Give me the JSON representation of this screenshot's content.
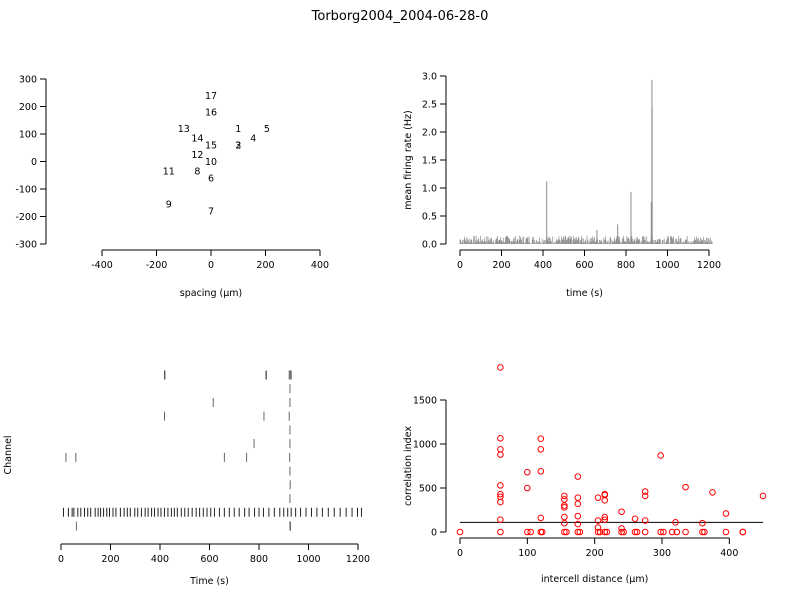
{
  "title": "Torborg2004_2004-06-28-0",
  "chart_data": [
    {
      "type": "scatter",
      "id": "electrode-layout",
      "title": "",
      "xlabel": "spacing (µm)",
      "ylabel": "",
      "xlim": [
        -400,
        400
      ],
      "ylim": [
        -300,
        300
      ],
      "xticks": [
        -400,
        -200,
        0,
        200,
        400
      ],
      "yticks": [
        -300,
        -200,
        -100,
        0,
        100,
        200,
        300
      ],
      "points": [
        {
          "label": "17",
          "x": 0,
          "y": 240
        },
        {
          "label": "16",
          "x": 0,
          "y": 180
        },
        {
          "label": "13",
          "x": -100,
          "y": 120
        },
        {
          "label": "1",
          "x": 100,
          "y": 120
        },
        {
          "label": "5",
          "x": 205,
          "y": 120
        },
        {
          "label": "14",
          "x": -50,
          "y": 85
        },
        {
          "label": "4",
          "x": 155,
          "y": 85
        },
        {
          "label": "2",
          "x": 100,
          "y": 60
        },
        {
          "label": "3",
          "x": 100,
          "y": 60
        },
        {
          "label": "15",
          "x": 0,
          "y": 60
        },
        {
          "label": "12",
          "x": -50,
          "y": 25
        },
        {
          "label": "10",
          "x": 0,
          "y": 0
        },
        {
          "label": "11",
          "x": -155,
          "y": -35
        },
        {
          "label": "8",
          "x": -50,
          "y": -35
        },
        {
          "label": "6",
          "x": 0,
          "y": -60
        },
        {
          "label": "9",
          "x": -155,
          "y": -155
        },
        {
          "label": "7",
          "x": 0,
          "y": -180
        }
      ]
    },
    {
      "type": "bar",
      "id": "mean-firing-rate",
      "title": "",
      "xlabel": "time (s)",
      "ylabel": "mean firing rate (Hz)",
      "xlim": [
        0,
        1220
      ],
      "ylim": [
        0,
        3.0
      ],
      "xticks": [
        0,
        200,
        400,
        600,
        800,
        1000,
        1200
      ],
      "yticks": [
        "0.0",
        "0.5",
        "1.0",
        "1.5",
        "2.0",
        "2.5",
        "3.0"
      ],
      "baseline_range": [
        0.0,
        0.15
      ],
      "peaks": [
        {
          "x": 418,
          "y": 1.12
        },
        {
          "x": 824,
          "y": 0.93
        },
        {
          "x": 925,
          "y": 2.93
        },
        {
          "x": 926,
          "y": 2.45
        },
        {
          "x": 922,
          "y": 0.75
        },
        {
          "x": 760,
          "y": 0.35
        },
        {
          "x": 660,
          "y": 0.25
        }
      ],
      "color": "#8c8c8c"
    },
    {
      "type": "raster",
      "id": "spike-raster",
      "title": "",
      "xlabel": "Time (s)",
      "ylabel": "Channel",
      "xlim": [
        0,
        1220
      ],
      "xticks": [
        0,
        200,
        400,
        600,
        800,
        1000,
        1200
      ],
      "rows": [
        {
          "channel": 1,
          "spikes": [
            62,
            925,
            927
          ]
        },
        {
          "channel": 2,
          "spikes": [
            10,
            30,
            45,
            52,
            68,
            80,
            95,
            108,
            120,
            138,
            150,
            160,
            172,
            185,
            196,
            210,
            222,
            240,
            255,
            268,
            280,
            298,
            310,
            325,
            340,
            352,
            366,
            378,
            392,
            404,
            418,
            432,
            446,
            458,
            470,
            486,
            500,
            514,
            530,
            546,
            560,
            575,
            590,
            605,
            620,
            640,
            660,
            680,
            700,
            720,
            742,
            760,
            782,
            800,
            818,
            840,
            862,
            884,
            900,
            916,
            930,
            948,
            968,
            990,
            1012,
            1034,
            1056,
            1080,
            1104,
            1128,
            1152,
            1176,
            1198,
            1214
          ]
        },
        {
          "channel": 3,
          "spikes": [
            925
          ]
        },
        {
          "channel": 4,
          "spikes": [
            926
          ]
        },
        {
          "channel": 5,
          "spikes": [
            925
          ]
        },
        {
          "channel": 6,
          "spikes": [
            20,
            60,
            660,
            750,
            924
          ]
        },
        {
          "channel": 7,
          "spikes": [
            780,
            925
          ]
        },
        {
          "channel": 8,
          "spikes": [
            925
          ]
        },
        {
          "channel": 9,
          "spikes": [
            418,
            820,
            922
          ]
        },
        {
          "channel": 10,
          "spikes": [
            615,
            925
          ]
        },
        {
          "channel": 11,
          "spikes": [
            925
          ]
        },
        {
          "channel": 12,
          "spikes": [
            418,
            420,
            828,
            830,
            922,
            926,
            930
          ]
        }
      ]
    },
    {
      "type": "scatter",
      "id": "correlation-index",
      "title": "",
      "xlabel": "intercell distance (µm)",
      "ylabel": "correlation index",
      "xlim": [
        0,
        450
      ],
      "ylim": [
        0,
        1900
      ],
      "xticks": [
        0,
        100,
        200,
        300,
        400
      ],
      "yticks": [
        0,
        500,
        1000,
        1500
      ],
      "reference_line": 110,
      "color": "#ff0000",
      "points": [
        [
          0,
          0
        ],
        [
          60,
          1870
        ],
        [
          60,
          1065
        ],
        [
          60,
          940
        ],
        [
          60,
          880
        ],
        [
          60,
          530
        ],
        [
          60,
          430
        ],
        [
          60,
          400
        ],
        [
          60,
          340
        ],
        [
          60,
          140
        ],
        [
          60,
          0
        ],
        [
          100,
          680
        ],
        [
          100,
          500
        ],
        [
          100,
          0
        ],
        [
          105,
          0
        ],
        [
          120,
          1060
        ],
        [
          120,
          940
        ],
        [
          120,
          690
        ],
        [
          120,
          160
        ],
        [
          120,
          0
        ],
        [
          122,
          0
        ],
        [
          155,
          410
        ],
        [
          155,
          370
        ],
        [
          155,
          300
        ],
        [
          155,
          280
        ],
        [
          155,
          170
        ],
        [
          155,
          100
        ],
        [
          155,
          0
        ],
        [
          158,
          0
        ],
        [
          175,
          630
        ],
        [
          175,
          390
        ],
        [
          175,
          320
        ],
        [
          175,
          180
        ],
        [
          175,
          90
        ],
        [
          175,
          0
        ],
        [
          178,
          0
        ],
        [
          205,
          390
        ],
        [
          205,
          130
        ],
        [
          205,
          50
        ],
        [
          205,
          0
        ],
        [
          208,
          0
        ],
        [
          215,
          430
        ],
        [
          215,
          420
        ],
        [
          215,
          360
        ],
        [
          215,
          170
        ],
        [
          215,
          140
        ],
        [
          215,
          0
        ],
        [
          218,
          0
        ],
        [
          240,
          230
        ],
        [
          240,
          40
        ],
        [
          240,
          0
        ],
        [
          243,
          0
        ],
        [
          260,
          150
        ],
        [
          260,
          0
        ],
        [
          263,
          0
        ],
        [
          275,
          460
        ],
        [
          275,
          410
        ],
        [
          275,
          130
        ],
        [
          275,
          0
        ],
        [
          298,
          870
        ],
        [
          298,
          0
        ],
        [
          302,
          0
        ],
        [
          315,
          0
        ],
        [
          320,
          110
        ],
        [
          322,
          0
        ],
        [
          335,
          510
        ],
        [
          335,
          0
        ],
        [
          360,
          100
        ],
        [
          360,
          0
        ],
        [
          363,
          0
        ],
        [
          375,
          450
        ],
        [
          395,
          210
        ],
        [
          395,
          0
        ],
        [
          420,
          0
        ],
        [
          420,
          0
        ],
        [
          450,
          410
        ]
      ]
    }
  ]
}
